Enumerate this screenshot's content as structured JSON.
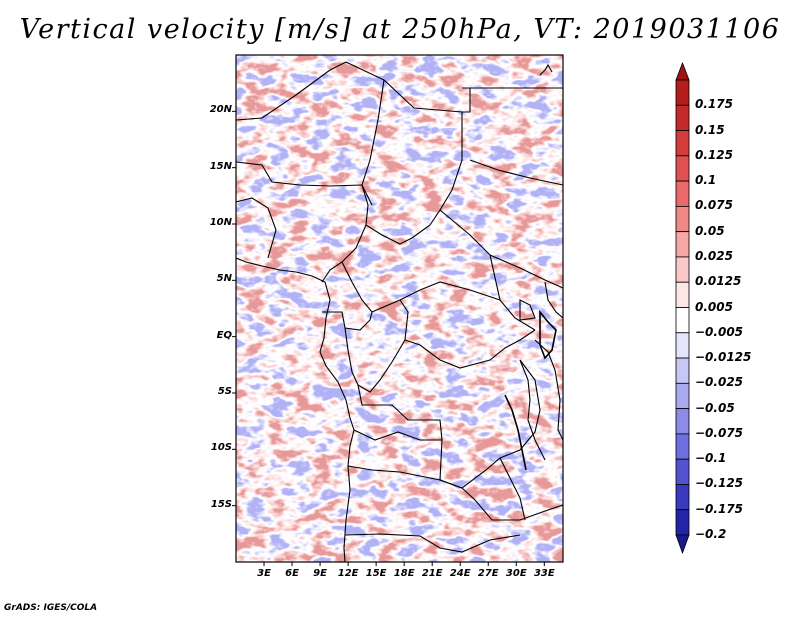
{
  "title": "Vertical velocity [m/s] at 250hPa, VT: 2019031106",
  "footer": "GrADS: IGES/COLA",
  "map": {
    "lon_range": [
      0,
      35
    ],
    "lat_range": [
      -20,
      25
    ],
    "lat_ticks": [
      {
        "value": 20,
        "label": "20N"
      },
      {
        "value": 15,
        "label": "15N"
      },
      {
        "value": 10,
        "label": "10N"
      },
      {
        "value": 5,
        "label": "5N"
      },
      {
        "value": 0,
        "label": "EQ"
      },
      {
        "value": -5,
        "label": "5S"
      },
      {
        "value": -10,
        "label": "10S"
      },
      {
        "value": -15,
        "label": "15S"
      }
    ],
    "lon_ticks": [
      {
        "value": 3,
        "label": "3E"
      },
      {
        "value": 6,
        "label": "6E"
      },
      {
        "value": 9,
        "label": "9E"
      },
      {
        "value": 12,
        "label": "12E"
      },
      {
        "value": 15,
        "label": "15E"
      },
      {
        "value": 18,
        "label": "18E"
      },
      {
        "value": 21,
        "label": "21E"
      },
      {
        "value": 24,
        "label": "24E"
      },
      {
        "value": 27,
        "label": "27E"
      },
      {
        "value": 30,
        "label": "30E"
      },
      {
        "value": 33,
        "label": "33E"
      }
    ]
  },
  "colorbar": {
    "levels": [
      {
        "label": "0.175",
        "color": "#b51c1c"
      },
      {
        "label": "0.15",
        "color": "#c42a2a"
      },
      {
        "label": "0.125",
        "color": "#d43b3b"
      },
      {
        "label": "0.1",
        "color": "#e05050"
      },
      {
        "label": "0.075",
        "color": "#ea6a6a"
      },
      {
        "label": "0.05",
        "color": "#f08888"
      },
      {
        "label": "0.025",
        "color": "#f6a8a8"
      },
      {
        "label": "0.0125",
        "color": "#fac8c8"
      },
      {
        "label": "0.005",
        "color": "#fde6e6"
      },
      {
        "label": "−0.005",
        "color": "#ffffff"
      },
      {
        "label": "−0.0125",
        "color": "#e4e4fb"
      },
      {
        "label": "−0.025",
        "color": "#c7c7f6"
      },
      {
        "label": "−0.05",
        "color": "#a9a9f0"
      },
      {
        "label": "−0.075",
        "color": "#8c8ce8"
      },
      {
        "label": "−0.1",
        "color": "#6e6ede"
      },
      {
        "label": "−0.125",
        "color": "#5353d0"
      },
      {
        "label": "−0.175",
        "color": "#3a3abf"
      },
      {
        "label": "−0.2",
        "color": "#2424a8"
      }
    ],
    "top_arrow_color": "#9c1414",
    "bottom_arrow_color": "#1a1a8f"
  }
}
